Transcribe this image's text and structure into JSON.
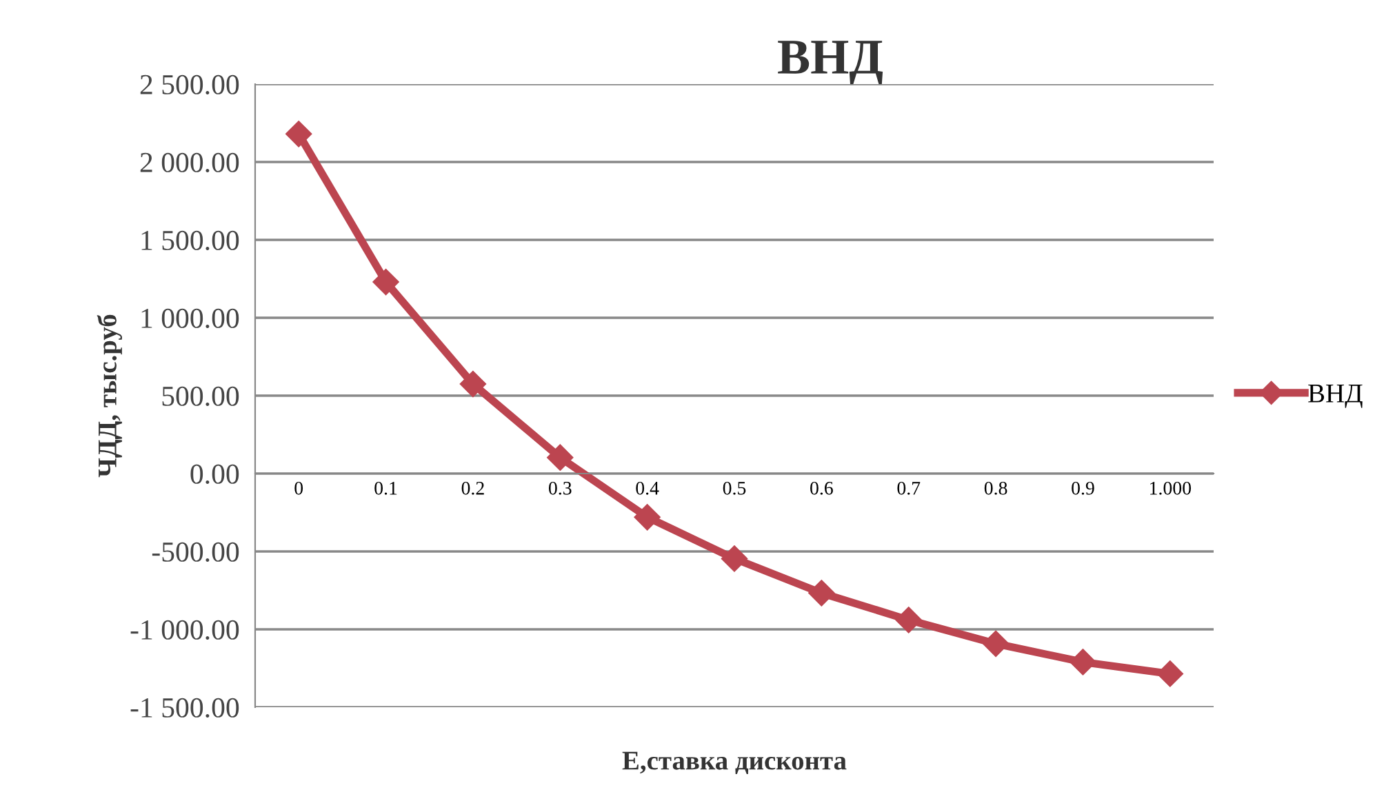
{
  "chart_data": {
    "type": "line",
    "title": "ВНД",
    "xlabel": "Е,ставка дисконта",
    "ylabel": "ЧДД, тыс.руб",
    "categories": [
      "0",
      "0.1",
      "0.2",
      "0.3",
      "0.4",
      "0.5",
      "0.6",
      "0.7",
      "0.8",
      "0.9",
      "1.000"
    ],
    "series": [
      {
        "name": "ВНД",
        "color": "#bc4550",
        "values": [
          2180,
          1230,
          575,
          103,
          -280,
          -546,
          -767,
          -940,
          -1092,
          -1210,
          -1285
        ]
      }
    ],
    "ylim": [
      -1500,
      2500
    ],
    "yticks": [
      {
        "value": -1500,
        "label": "-1 500.00"
      },
      {
        "value": -1000,
        "label": "-1 000.00"
      },
      {
        "value": -500,
        "label": "-500.00"
      },
      {
        "value": 0,
        "label": "0.00"
      },
      {
        "value": 500,
        "label": "500.00"
      },
      {
        "value": 1000,
        "label": "1 000.00"
      },
      {
        "value": 1500,
        "label": "1 500.00"
      },
      {
        "value": 2000,
        "label": "2 000.00"
      },
      {
        "value": 2500,
        "label": "2 500.00"
      }
    ],
    "grid": "y",
    "legend": "right",
    "marker": "diamond",
    "line_style": "solid"
  }
}
